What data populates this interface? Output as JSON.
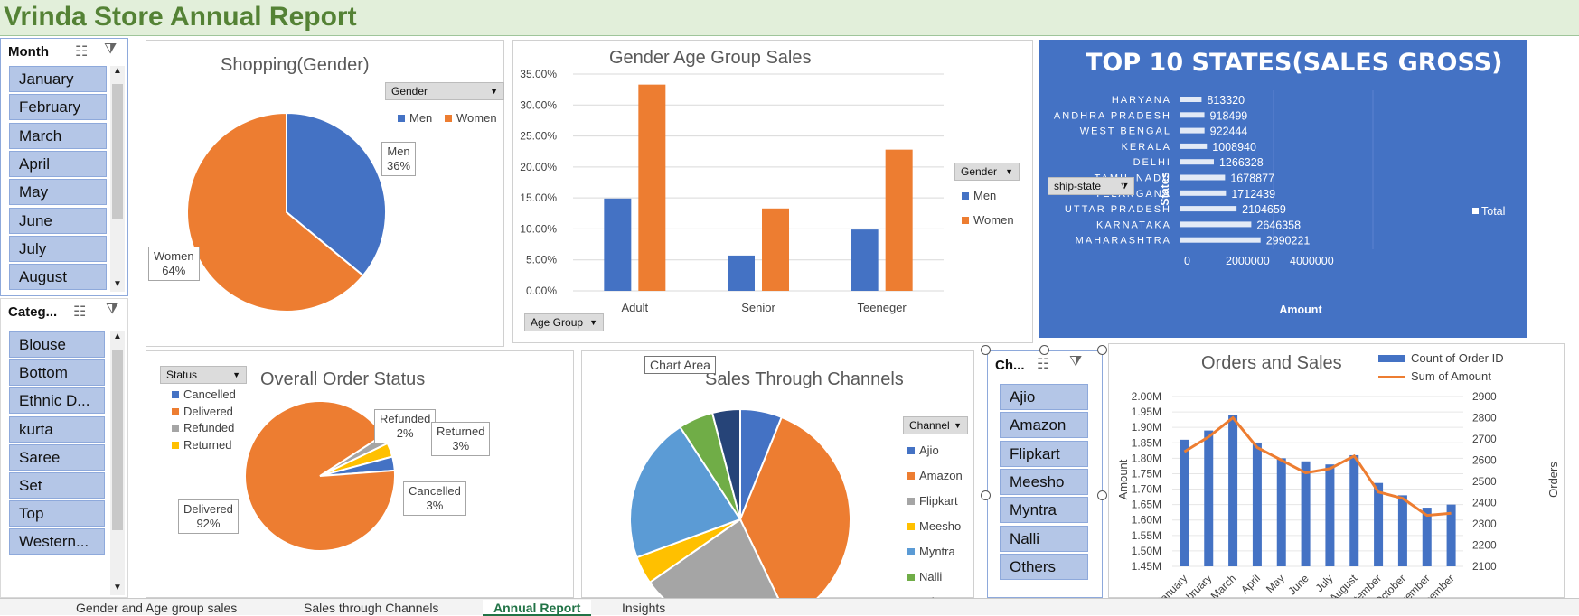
{
  "report": {
    "title": "Vrinda Store Annual Report"
  },
  "month_slicer": {
    "title": "Month",
    "items": [
      "January",
      "February",
      "March",
      "April",
      "May",
      "June",
      "July",
      "August"
    ]
  },
  "category_slicer": {
    "title": "Categ...",
    "items": [
      "Blouse",
      "Bottom",
      "Ethnic D...",
      "kurta",
      "Saree",
      "Set",
      "Top",
      "Western..."
    ]
  },
  "channel_slicer": {
    "title": "Ch...",
    "items": [
      "Ajio",
      "Amazon",
      "Flipkart",
      "Meesho",
      "Myntra",
      "Nalli",
      "Others"
    ]
  },
  "gender_chart": {
    "title": "Shopping(Gender)",
    "filter_label": "Gender",
    "callouts": {
      "men": "Men\n36%",
      "women": "Women\n64%"
    },
    "legend": {
      "men": "Men",
      "women": "Women"
    }
  },
  "age_chart": {
    "title": "Gender Age Group Sales",
    "filter_label": "Gender",
    "axis_filter_label": "Age Group",
    "legend": {
      "men": "Men",
      "women": "Women"
    }
  },
  "states_chart": {
    "title": "TOP 10 STATES(SALES GROSS)",
    "filter_label": "ship-state",
    "ylabel": "States",
    "xlabel": "Amount",
    "legend": "Total"
  },
  "status_chart": {
    "title": "Overall Order Status",
    "filter_label": "Status",
    "legend": [
      "Cancelled",
      "Delivered",
      "Refunded",
      "Returned"
    ],
    "callouts": {
      "refunded": "Refunded\n2%",
      "returned": "Returned\n3%",
      "cancelled": "Cancelled\n3%",
      "delivered": "Delivered\n92%"
    }
  },
  "channel_chart": {
    "title": "Sales Through Channels",
    "filter_label": "Channel",
    "tooltip": "Chart Area",
    "legend": [
      "Ajio",
      "Amazon",
      "Flipkart",
      "Meesho",
      "Myntra",
      "Nalli",
      "Others"
    ]
  },
  "orders_chart": {
    "title": "Orders and Sales",
    "legend": {
      "bars": "Count of Order ID",
      "line": "Sum of Amount"
    },
    "ylabel_left": "Amount",
    "ylabel_right": "Orders"
  },
  "sheet_tabs": [
    "Gender and Age group sales",
    "Sales through Channels",
    "Annual Report",
    "Insights"
  ],
  "colors": {
    "men": "#4472c4",
    "women": "#ed7d31",
    "grey": "#a5a5a5",
    "yellow": "#ffc000",
    "lightblue": "#5b9bd5",
    "green": "#70ad47",
    "navy": "#264478",
    "header_bg": "#e2efda",
    "title_green": "#548235",
    "states_bg": "#4472c4"
  },
  "chart_data": [
    {
      "type": "pie",
      "title": "Shopping(Gender)",
      "categories": [
        "Men",
        "Women"
      ],
      "values": [
        36,
        64
      ]
    },
    {
      "type": "bar",
      "title": "Gender Age Group Sales",
      "categories": [
        "Adult",
        "Senior",
        "Teeneger"
      ],
      "series": [
        {
          "name": "Men",
          "values": [
            14.9,
            5.7,
            9.9
          ]
        },
        {
          "name": "Women",
          "values": [
            33.3,
            13.3,
            22.8
          ]
        }
      ],
      "ylim": [
        0,
        35
      ],
      "yticks": [
        "0.00%",
        "5.00%",
        "10.00%",
        "15.00%",
        "20.00%",
        "25.00%",
        "30.00%",
        "35.00%"
      ]
    },
    {
      "type": "bar",
      "title": "TOP 10 STATES(SALES GROSS)",
      "categories": [
        "HARYANA",
        "ANDHRA PRADESH",
        "WEST BENGAL",
        "KERALA",
        "DELHI",
        "TAMIL NADU",
        "TELANGANA",
        "UTTAR PRADESH",
        "KARNATAKA",
        "MAHARASHTRA"
      ],
      "series": [
        {
          "name": "Total",
          "values": [
            813320,
            918499,
            922444,
            1008940,
            1266328,
            1678877,
            1712439,
            2104659,
            2646358,
            2990221
          ]
        }
      ],
      "xticks": [
        "0",
        "2000000",
        "4000000"
      ],
      "xlim": [
        0,
        4000000
      ],
      "xlabel": "Amount",
      "ylabel": "States"
    },
    {
      "type": "pie",
      "title": "Overall Order Status",
      "categories": [
        "Cancelled",
        "Delivered",
        "Refunded",
        "Returned"
      ],
      "values": [
        3,
        92,
        2,
        3
      ]
    },
    {
      "type": "pie",
      "title": "Sales Through Channels",
      "categories": [
        "Ajio",
        "Amazon",
        "Flipkart",
        "Meesho",
        "Myntra",
        "Nalli",
        "Others"
      ],
      "values": [
        6,
        36,
        22,
        4,
        21,
        5,
        4
      ]
    },
    {
      "type": "bar",
      "title": "Orders and Sales",
      "categories": [
        "January",
        "February",
        "March",
        "April",
        "May",
        "June",
        "July",
        "August",
        "September",
        "October",
        "November",
        "December"
      ],
      "series": [
        {
          "name": "Count of Order ID",
          "values": [
            1.86,
            1.89,
            1.94,
            1.85,
            1.8,
            1.79,
            1.78,
            1.81,
            1.72,
            1.68,
            1.64,
            1.65
          ]
        },
        {
          "name": "Sum of Amount",
          "values": [
            2640,
            2710,
            2800,
            2660,
            2600,
            2540,
            2560,
            2620,
            2450,
            2420,
            2340,
            2350
          ]
        }
      ],
      "ylim_left": [
        1.45,
        2.0
      ],
      "ylim_right": [
        2100,
        2900
      ],
      "yticks_left": [
        "1.45M",
        "1.50M",
        "1.55M",
        "1.60M",
        "1.65M",
        "1.70M",
        "1.75M",
        "1.80M",
        "1.85M",
        "1.90M",
        "1.95M",
        "2.00M"
      ],
      "yticks_right": [
        "2100",
        "2200",
        "2300",
        "2400",
        "2500",
        "2600",
        "2700",
        "2800",
        "2900"
      ],
      "xticks": [
        "January",
        "February",
        "March",
        "April",
        "May",
        "June",
        "July",
        "August",
        "September",
        "October",
        "November",
        "December"
      ],
      "ylabel_left": "Amount",
      "ylabel_right": "Orders"
    }
  ]
}
